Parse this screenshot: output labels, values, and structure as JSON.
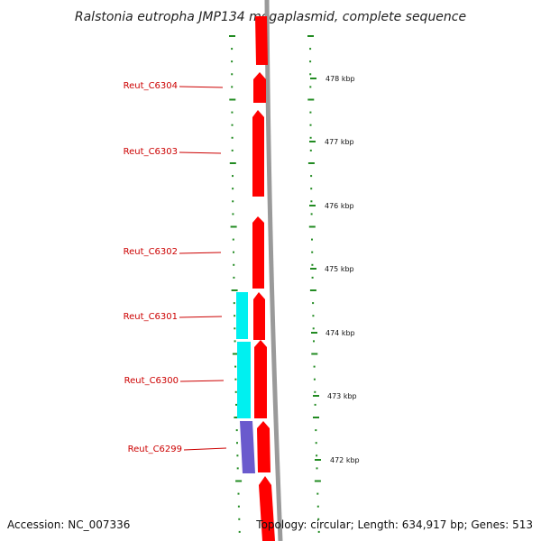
{
  "title": "Ralstonia eutropha JMP134 megaplasmid, complete sequence",
  "accession": "Accession: NC_007336",
  "summary": "Topology: circular; Length: 634,917 bp; Genes: 513",
  "colors": {
    "forward_gene": "#ff0000",
    "reverse_gene_cyan": "#00f0f0",
    "reverse_gene_purple": "#6a5acd",
    "label": "#cc0000",
    "backbone": "#888888",
    "ticks": "#228b22"
  },
  "scale": {
    "ticks": [
      "478 kbp",
      "477 kbp",
      "476 kbp",
      "475 kbp",
      "474 kbp",
      "473 kbp",
      "472 kbp"
    ]
  },
  "genes": [
    {
      "label": "Reut_C6304",
      "color": "red"
    },
    {
      "label": "Reut_C6303",
      "color": "red"
    },
    {
      "label": "Reut_C6302",
      "color": "red"
    },
    {
      "label": "Reut_C6301",
      "color": "red"
    },
    {
      "label": "Reut_C6300",
      "color": "red"
    },
    {
      "label": "Reut_C6299",
      "color": "red"
    }
  ]
}
